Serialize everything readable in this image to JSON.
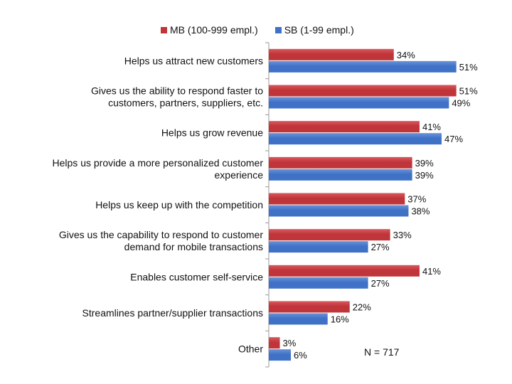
{
  "chart_data": {
    "type": "bar",
    "orientation": "horizontal",
    "categories": [
      [
        "Helps us attract new customers"
      ],
      [
        "Gives us the ability to respond faster to",
        "customers,  partners, suppliers, etc."
      ],
      [
        "Helps us grow revenue"
      ],
      [
        "Helps us provide a more personalized customer",
        "experience"
      ],
      [
        "Helps us keep up with the competition"
      ],
      [
        "Gives us the capability to respond to customer",
        "demand for mobile transactions"
      ],
      [
        "Enables customer self-service"
      ],
      [
        "Streamlines partner/supplier transactions"
      ],
      [
        "Other"
      ]
    ],
    "series": [
      {
        "name": "MB (100-999 empl.)",
        "color": "#c0353a",
        "values": [
          34,
          51,
          41,
          39,
          37,
          33,
          41,
          22,
          3
        ]
      },
      {
        "name": "SB (1-99 empl.)",
        "color": "#3f72c6",
        "values": [
          51,
          49,
          47,
          39,
          38,
          27,
          27,
          16,
          6
        ]
      }
    ],
    "value_suffix": "%",
    "xlim": [
      0,
      60
    ],
    "legend_position": "top",
    "grid": false,
    "note": "N = 717"
  }
}
